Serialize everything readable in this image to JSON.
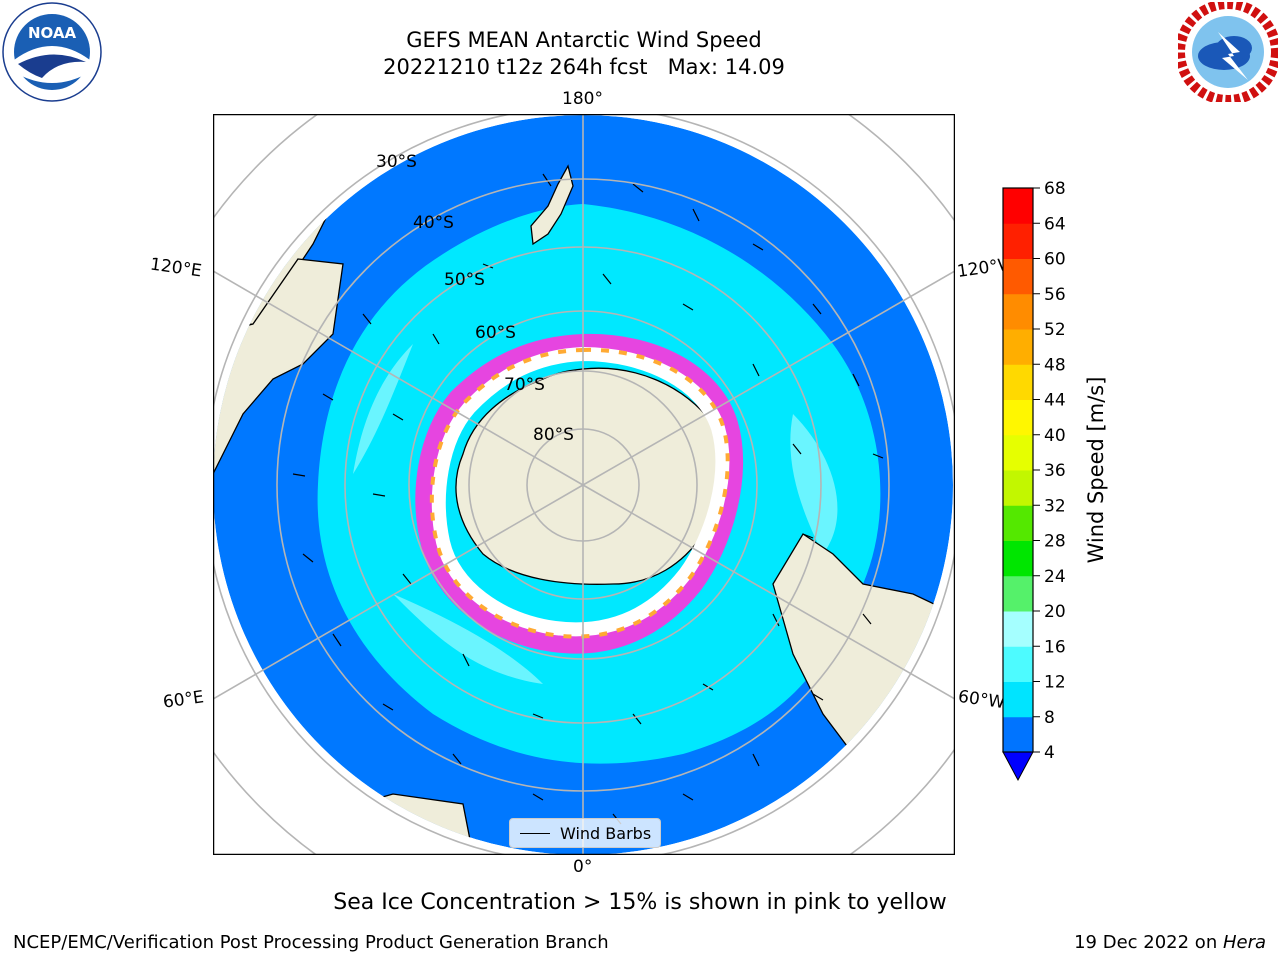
{
  "title": {
    "line1": "GEFS MEAN Antarctic Wind Speed",
    "line2": "20221210 t12z 264h fcst   Max: 14.09"
  },
  "logos": {
    "left": "noaa-logo",
    "left_text": "NOAA",
    "right": "nws-logo"
  },
  "map": {
    "projection": "south-polar-stereographic",
    "longitude_labels": [
      "180°",
      "120°E",
      "120°W",
      "60°E",
      "60°W",
      "0°"
    ],
    "latitude_labels": [
      "30°S",
      "40°S",
      "50°S",
      "60°S",
      "70°S",
      "80°S"
    ],
    "legend_label": "Wind Barbs"
  },
  "colorbar": {
    "title": "Wind Speed [m/s]",
    "ticks": [
      4,
      8,
      12,
      16,
      20,
      24,
      28,
      32,
      36,
      40,
      44,
      48,
      52,
      56,
      60,
      64,
      68
    ],
    "colors": [
      "#0074ff",
      "#00e4ff",
      "#4dfbff",
      "#a5ffff",
      "#55f16a",
      "#00e600",
      "#54e800",
      "#c2f700",
      "#e6ff00",
      "#fff700",
      "#ffd900",
      "#ffae00",
      "#ff8c00",
      "#ff5a00",
      "#ff2000",
      "#ff0000"
    ],
    "under_color": "#0000ff"
  },
  "colors": {
    "ocean_dark": "#0078ff",
    "ocean_mid": "#00e8ff",
    "ocean_light": "#7cf7ff",
    "land": "#efedda",
    "ice_edge": "#ff33dd",
    "ice_inner": "#ffaa33",
    "grid": "#b5b5b5"
  },
  "footer": {
    "note": "Sea Ice Concentration > 15% is shown in pink to yellow",
    "credit": "NCEP/EMC/Verification Post Processing Product Generation Branch",
    "date": "19 Dec 2022 on ",
    "host": "Hera"
  }
}
